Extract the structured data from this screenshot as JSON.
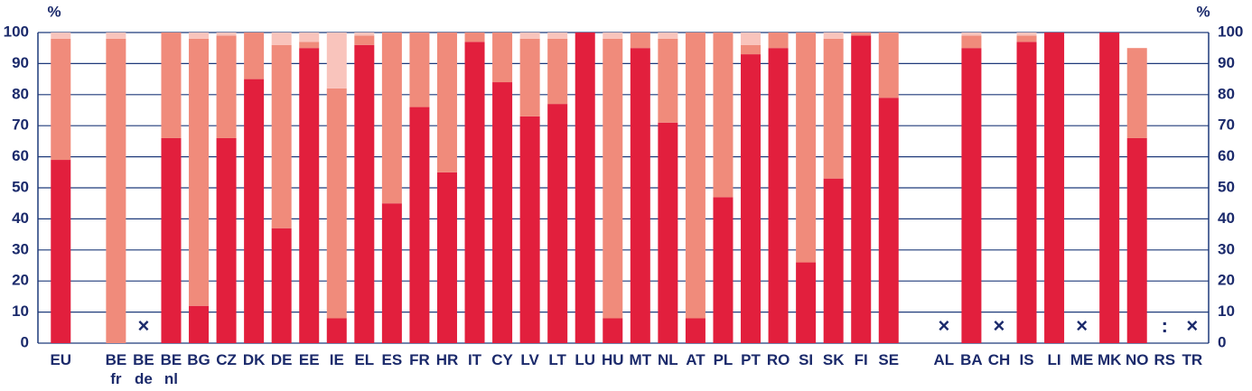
{
  "chart_data": {
    "type": "stacked-bar",
    "y_label": "%",
    "y2_label": "%",
    "categories": [
      "EU",
      null,
      "BE fr",
      "BE de",
      "BE nl",
      "BG",
      "CZ",
      "DK",
      "DE",
      "EE",
      "IE",
      "EL",
      "ES",
      "FR",
      "HR",
      "IT",
      "CY",
      "LV",
      "LT",
      "LU",
      "HU",
      "MT",
      "NL",
      "AT",
      "PL",
      "PT",
      "RO",
      "SI",
      "SK",
      "FI",
      "SE",
      null,
      "AL",
      "BA",
      "CH",
      "IS",
      "LI",
      "ME",
      "MK",
      "NO",
      "RS",
      "TR"
    ],
    "series": [
      {
        "color": "#e21f3d",
        "values": [
          59,
          null,
          0,
          null,
          66,
          12,
          66,
          85,
          37,
          95,
          8,
          96,
          45,
          76,
          55,
          97,
          84,
          73,
          77,
          100,
          8,
          95,
          71,
          8,
          47,
          93,
          95,
          26,
          53,
          99,
          79,
          null,
          null,
          95,
          null,
          97,
          100,
          null,
          100,
          66,
          null,
          null
        ]
      },
      {
        "color": "#f08b7b",
        "values": [
          39,
          null,
          98,
          null,
          34,
          86,
          33,
          15,
          59,
          2,
          74,
          3,
          55,
          24,
          45,
          3,
          16,
          25,
          21,
          0,
          90,
          5,
          27,
          92,
          53,
          3,
          5,
          74,
          45,
          1,
          21,
          null,
          null,
          4,
          null,
          2,
          0,
          null,
          0,
          29,
          null,
          null
        ]
      },
      {
        "color": "#f9c4bc",
        "values": [
          2,
          null,
          2,
          null,
          0,
          2,
          1,
          0,
          4,
          3,
          18,
          1,
          0,
          0,
          0,
          0,
          0,
          2,
          2,
          0,
          2,
          0,
          2,
          0,
          0,
          4,
          0,
          0,
          2,
          0,
          0,
          null,
          null,
          1,
          null,
          1,
          0,
          null,
          0,
          0,
          null,
          null
        ]
      }
    ],
    "flags": [
      {
        "category": "BE de",
        "label": "×"
      },
      {
        "category": "AL",
        "label": "×"
      },
      {
        "category": "CH",
        "label": "×"
      },
      {
        "category": "ME",
        "label": "×"
      },
      {
        "category": "RS",
        "label": ":"
      },
      {
        "category": "TR",
        "label": "×"
      }
    ],
    "ylim": [
      0,
      100
    ],
    "yticks": [
      0,
      10,
      20,
      30,
      40,
      50,
      60,
      70,
      80,
      90,
      100
    ],
    "y2lim": [
      0,
      100
    ],
    "y2ticks": [
      0,
      10,
      20,
      30,
      40,
      50,
      60,
      70,
      80,
      90,
      100
    ],
    "grid": true
  }
}
